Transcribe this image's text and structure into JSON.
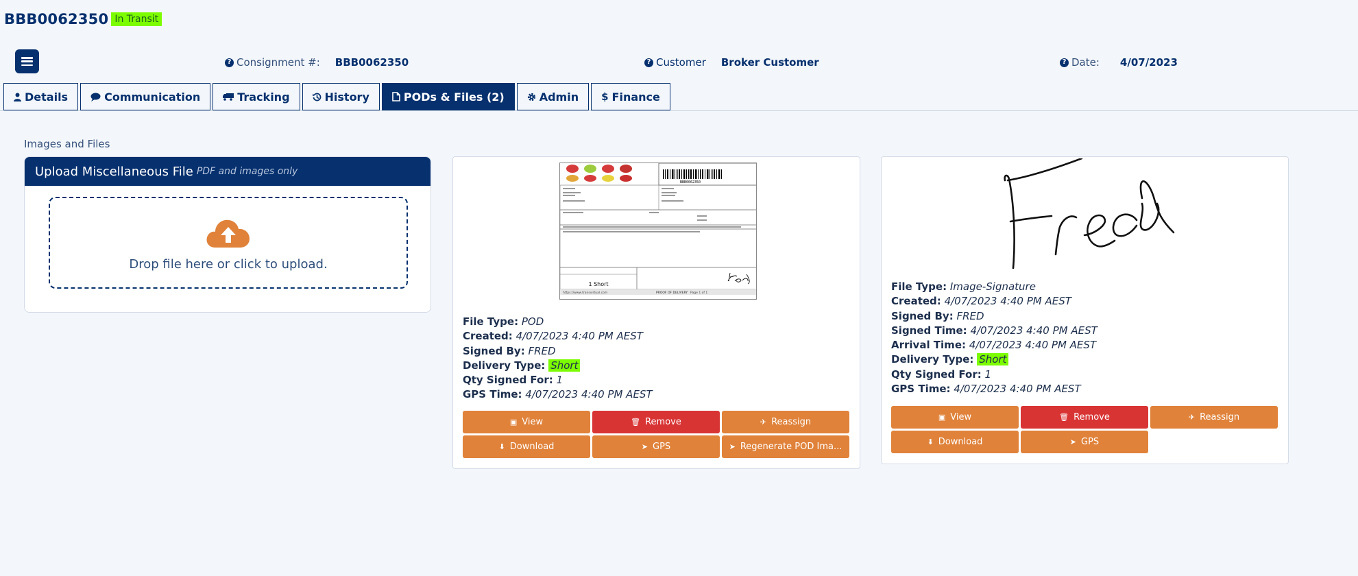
{
  "header": {
    "consignment_id": "BBB0062350",
    "status": "In Transit",
    "consignment_label": "Consignment #:",
    "consignment_value": "BBB0062350",
    "customer_label": "Customer",
    "customer_value": "Broker Customer",
    "date_label": "Date:",
    "date_value": "4/07/2023"
  },
  "tabs": [
    {
      "label": "Details",
      "icon": "user-icon"
    },
    {
      "label": "Communication",
      "icon": "comment-icon"
    },
    {
      "label": "Tracking",
      "icon": "truck-icon"
    },
    {
      "label": "History",
      "icon": "history-icon"
    },
    {
      "label": "PODs & Files (2)",
      "icon": "file-icon",
      "active": true
    },
    {
      "label": "Admin",
      "icon": "gear-icon"
    },
    {
      "label": "Finance",
      "icon": "dollar-icon"
    }
  ],
  "section_label": "Images and Files",
  "upload": {
    "title": "Upload Miscellaneous File",
    "subtitle": "PDF and images only",
    "drop_text": "Drop file here or click to upload."
  },
  "files": [
    {
      "file_type_label": "File Type:",
      "file_type": "POD",
      "created_label": "Created:",
      "created": "4/07/2023 4:40 PM AEST",
      "signed_by_label": "Signed By:",
      "signed_by": "FRED",
      "delivery_type_label": "Delivery Type:",
      "delivery_type": "Short",
      "qty_label": "Qty Signed For:",
      "qty": "1",
      "gps_label": "GPS Time:",
      "gps_time": "4/07/2023 4:40 PM AEST",
      "buttons": [
        "View",
        "Remove",
        "Reassign",
        "Download",
        "GPS",
        "Regenerate POD Ima..."
      ]
    },
    {
      "file_type_label": "File Type:",
      "file_type": "Image-Signature",
      "created_label": "Created:",
      "created": "4/07/2023 4:40 PM AEST",
      "signed_by_label": "Signed By:",
      "signed_by": "FRED",
      "signed_time_label": "Signed Time:",
      "signed_time": "4/07/2023 4:40 PM AEST",
      "arrival_label": "Arrival Time:",
      "arrival_time": "4/07/2023 4:40 PM AEST",
      "delivery_type_label": "Delivery Type:",
      "delivery_type": "Short",
      "qty_label": "Qty Signed For:",
      "qty": "1",
      "gps_label": "GPS Time:",
      "gps_time": "4/07/2023 4:40 PM AEST",
      "buttons": [
        "View",
        "Remove",
        "Reassign",
        "Download",
        "GPS"
      ]
    }
  ],
  "pod_doc": {
    "barcode_text": "BBB0062350",
    "short_label": "1 Short",
    "footer_left": "https://www.transvirtual.com",
    "footer_mid": "PROOF OF DELIVERY",
    "footer_page": "Page 1 of 1"
  },
  "colors": {
    "navy": "#06306e",
    "orange": "#e0823a",
    "red": "#d93434",
    "highlight": "#7cfc00"
  }
}
